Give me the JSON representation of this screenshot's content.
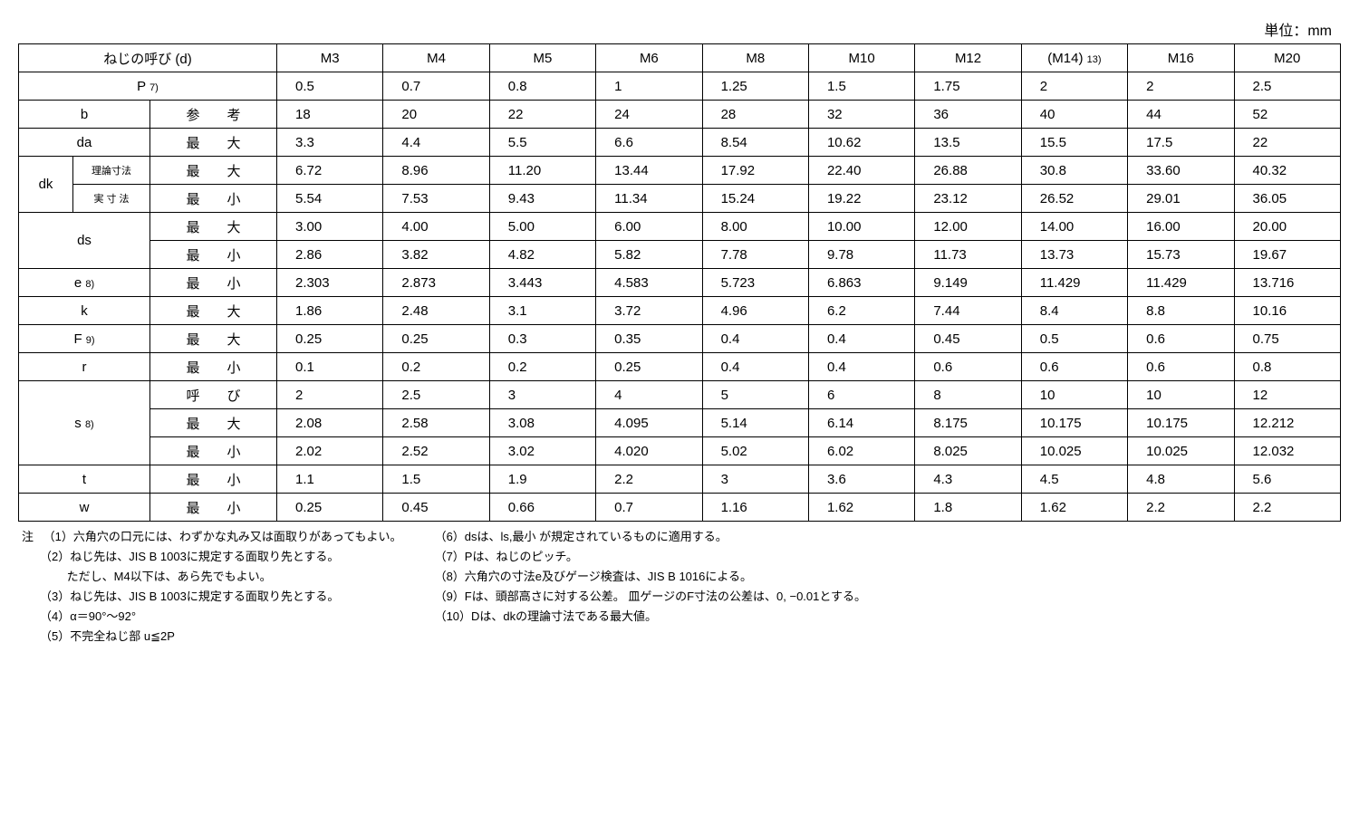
{
  "unit_label": "単位：mm",
  "headers": [
    "M3",
    "M4",
    "M5",
    "M6",
    "M8",
    "M10",
    "M12",
    "(M14) ",
    "M16",
    "M20"
  ],
  "header_note": "13)",
  "row_labels": {
    "d": "ねじの呼び (d)",
    "P": "P ",
    "P_note": "7)",
    "b": "b",
    "b_sub": "参　　考",
    "da": "da",
    "da_sub": "最　　大",
    "dk": "dk",
    "dk_r1a": "理論寸法",
    "dk_r1b": "最　　大",
    "dk_r2a": "実 寸 法",
    "dk_r2b": "最　　小",
    "ds": "ds",
    "ds_r1": "最　　大",
    "ds_r2": "最　　小",
    "e": "e ",
    "e_note": "8)",
    "e_sub": "最　　小",
    "k": "k",
    "k_sub": "最　　大",
    "F": "F ",
    "F_note": "9)",
    "F_sub": "最　　大",
    "r": "r",
    "r_sub": "最　　小",
    "s": "s ",
    "s_note": "8)",
    "s_r1": "呼　　び",
    "s_r2": "最　　大",
    "s_r3": "最　　小",
    "t": "t",
    "t_sub": "最　　小",
    "w": "w",
    "w_sub": "最　　小"
  },
  "data": {
    "P": [
      "0.5",
      "0.7",
      "0.8",
      "1",
      "1.25",
      "1.5",
      "1.75",
      "2",
      "2",
      "2.5"
    ],
    "b": [
      "18",
      "20",
      "22",
      "24",
      "28",
      "32",
      "36",
      "40",
      "44",
      "52"
    ],
    "da": [
      "3.3",
      "4.4",
      "5.5",
      "6.6",
      "8.54",
      "10.62",
      "13.5",
      "15.5",
      "17.5",
      "22"
    ],
    "dk1": [
      "6.72",
      "8.96",
      "11.20",
      "13.44",
      "17.92",
      "22.40",
      "26.88",
      "30.8",
      "33.60",
      "40.32"
    ],
    "dk2": [
      "5.54",
      "7.53",
      "9.43",
      "11.34",
      "15.24",
      "19.22",
      "23.12",
      "26.52",
      "29.01",
      "36.05"
    ],
    "ds1": [
      "3.00",
      "4.00",
      "5.00",
      "6.00",
      "8.00",
      "10.00",
      "12.00",
      "14.00",
      "16.00",
      "20.00"
    ],
    "ds2": [
      "2.86",
      "3.82",
      "4.82",
      "5.82",
      "7.78",
      "9.78",
      "11.73",
      "13.73",
      "15.73",
      "19.67"
    ],
    "e": [
      "2.303",
      "2.873",
      "3.443",
      "4.583",
      "5.723",
      "6.863",
      "9.149",
      "11.429",
      "11.429",
      "13.716"
    ],
    "k": [
      "1.86",
      "2.48",
      "3.1",
      "3.72",
      "4.96",
      "6.2",
      "7.44",
      "8.4",
      "8.8",
      "10.16"
    ],
    "F": [
      "0.25",
      "0.25",
      "0.3",
      "0.35",
      "0.4",
      "0.4",
      "0.45",
      "0.5",
      "0.6",
      "0.75"
    ],
    "r": [
      "0.1",
      "0.2",
      "0.2",
      "0.25",
      "0.4",
      "0.4",
      "0.6",
      "0.6",
      "0.6",
      "0.8"
    ],
    "s1": [
      "2",
      "2.5",
      "3",
      "4",
      "5",
      "6",
      "8",
      "10",
      "10",
      "12"
    ],
    "s2": [
      "2.08",
      "2.58",
      "3.08",
      "4.095",
      "5.14",
      "6.14",
      "8.175",
      "10.175",
      "10.175",
      "12.212"
    ],
    "s3": [
      "2.02",
      "2.52",
      "3.02",
      "4.020",
      "5.02",
      "6.02",
      "8.025",
      "10.025",
      "10.025",
      "12.032"
    ],
    "t": [
      "1.1",
      "1.5",
      "1.9",
      "2.2",
      "3",
      "3.6",
      "4.3",
      "4.5",
      "4.8",
      "5.6"
    ],
    "w": [
      "0.25",
      "0.45",
      "0.66",
      "0.7",
      "1.16",
      "1.62",
      "1.8",
      "1.62",
      "2.2",
      "2.2"
    ]
  },
  "notes": {
    "label": "注",
    "col1": [
      "（1）六角穴の口元には、わずかな丸み又は面取りがあってもよい。",
      "（2）ねじ先は、JIS B 1003に規定する面取り先とする。",
      "　　 ただし、M4以下は、あら先でもよい。",
      "（3）ねじ先は、JIS B 1003に規定する面取り先とする。",
      "（4）α＝90°～92°",
      "（5）不完全ねじ部 u≦2P"
    ],
    "col2": [
      "（6）dsは、ls,最小 が規定されているものに適用する。",
      "（7）Pは、ねじのピッチ。",
      "（8）六角穴の寸法e及びゲージ検査は、JIS B 1016による。",
      "（9）Fは、頭部高さに対する公差。 皿ゲージのF寸法の公差は、0, −0.01とする。",
      "（10）Dは、dkの理論寸法である最大値。"
    ]
  }
}
